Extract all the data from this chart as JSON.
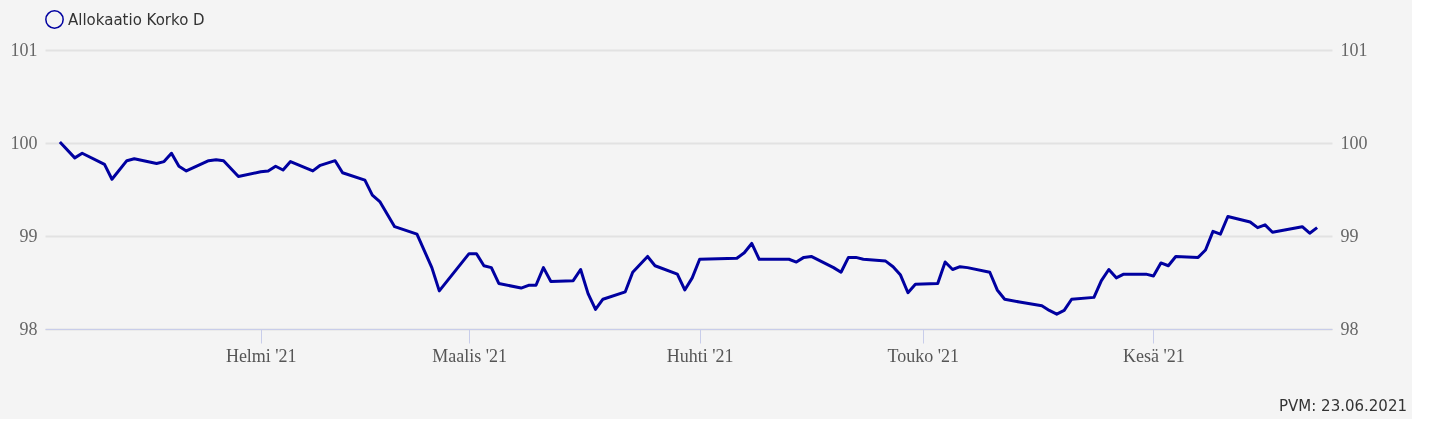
{
  "chart_data": {
    "type": "line",
    "x": [
      "2021-01-05",
      "2021-01-07",
      "2021-01-08",
      "2021-01-11",
      "2021-01-12",
      "2021-01-14",
      "2021-01-15",
      "2021-01-18",
      "2021-01-19",
      "2021-01-20",
      "2021-01-21",
      "2021-01-22",
      "2021-01-25",
      "2021-01-26",
      "2021-01-27",
      "2021-01-29",
      "2021-02-01",
      "2021-02-02",
      "2021-02-03",
      "2021-02-04",
      "2021-02-05",
      "2021-02-08",
      "2021-02-09",
      "2021-02-11",
      "2021-02-12",
      "2021-02-15",
      "2021-02-16",
      "2021-02-17",
      "2021-02-19",
      "2021-02-22",
      "2021-02-24",
      "2021-02-25",
      "2021-03-01",
      "2021-03-02",
      "2021-03-03",
      "2021-03-04",
      "2021-03-05",
      "2021-03-08",
      "2021-03-09",
      "2021-03-10",
      "2021-03-11",
      "2021-03-12",
      "2021-03-15",
      "2021-03-16",
      "2021-03-17",
      "2021-03-18",
      "2021-03-19",
      "2021-03-22",
      "2021-03-23",
      "2021-03-25",
      "2021-03-26",
      "2021-03-29",
      "2021-03-30",
      "2021-03-31",
      "2021-04-01",
      "2021-04-06",
      "2021-04-07",
      "2021-04-08",
      "2021-04-09",
      "2021-04-13",
      "2021-04-14",
      "2021-04-15",
      "2021-04-16",
      "2021-04-19",
      "2021-04-20",
      "2021-04-21",
      "2021-04-22",
      "2021-04-23",
      "2021-04-26",
      "2021-04-27",
      "2021-04-28",
      "2021-04-29",
      "2021-04-30",
      "2021-05-03",
      "2021-05-04",
      "2021-05-05",
      "2021-05-06",
      "2021-05-07",
      "2021-05-10",
      "2021-05-11",
      "2021-05-12",
      "2021-05-14",
      "2021-05-17",
      "2021-05-18",
      "2021-05-19",
      "2021-05-20",
      "2021-05-21",
      "2021-05-24",
      "2021-05-25",
      "2021-05-26",
      "2021-05-27",
      "2021-05-28",
      "2021-05-31",
      "2021-06-01",
      "2021-06-02",
      "2021-06-03",
      "2021-06-04",
      "2021-06-07",
      "2021-06-08",
      "2021-06-09",
      "2021-06-10",
      "2021-06-11",
      "2021-06-14",
      "2021-06-15",
      "2021-06-16",
      "2021-06-17",
      "2021-06-21",
      "2021-06-22",
      "2021-06-23"
    ],
    "series": [
      {
        "name": "Allokaatio Korko D",
        "color": "#0000a0",
        "values": [
          100.01,
          99.84,
          99.89,
          99.77,
          99.61,
          99.81,
          99.83,
          99.78,
          99.8,
          99.89,
          99.75,
          99.7,
          99.81,
          99.82,
          99.81,
          99.64,
          99.69,
          99.7,
          99.75,
          99.71,
          99.8,
          99.7,
          99.76,
          99.81,
          99.68,
          99.6,
          99.44,
          99.37,
          99.1,
          99.02,
          98.66,
          98.41,
          98.81,
          98.81,
          98.68,
          98.66,
          98.49,
          98.44,
          98.47,
          98.47,
          98.66,
          98.51,
          98.52,
          98.64,
          98.38,
          98.21,
          98.32,
          98.4,
          98.61,
          98.78,
          98.68,
          98.59,
          98.42,
          98.55,
          98.75,
          98.76,
          98.82,
          98.92,
          98.75,
          98.75,
          98.72,
          98.77,
          98.78,
          98.66,
          98.61,
          98.77,
          98.77,
          98.75,
          98.73,
          98.67,
          98.58,
          98.39,
          98.48,
          98.49,
          98.72,
          98.64,
          98.67,
          98.66,
          98.61,
          98.42,
          98.32,
          98.29,
          98.25,
          98.2,
          98.16,
          98.2,
          98.32,
          98.34,
          98.52,
          98.64,
          98.55,
          98.59,
          98.59,
          98.57,
          98.71,
          98.68,
          98.78,
          98.77,
          98.85,
          99.05,
          99.02,
          99.21,
          99.15,
          99.09,
          99.12,
          99.04,
          99.1,
          99.03,
          99.09
        ]
      }
    ],
    "xlim": [
      "2021-01-03",
      "2021-06-25"
    ],
    "xticks": [
      {
        "value": "2021-02-01",
        "label": "Helmi '21"
      },
      {
        "value": "2021-03-01",
        "label": "Maalis '21"
      },
      {
        "value": "2021-04-01",
        "label": "Huhti '21"
      },
      {
        "value": "2021-05-01",
        "label": "Touko '21"
      },
      {
        "value": "2021-06-01",
        "label": "Kesä '21"
      }
    ],
    "ylim": [
      98,
      101
    ],
    "yticks": [
      98,
      99,
      100,
      101
    ],
    "y2lim": [
      98,
      101
    ],
    "y2ticks": [
      98,
      99,
      100,
      101
    ],
    "grid": "y",
    "legend": "top",
    "annotations": [
      "PVM: 23.06.2021"
    ]
  }
}
